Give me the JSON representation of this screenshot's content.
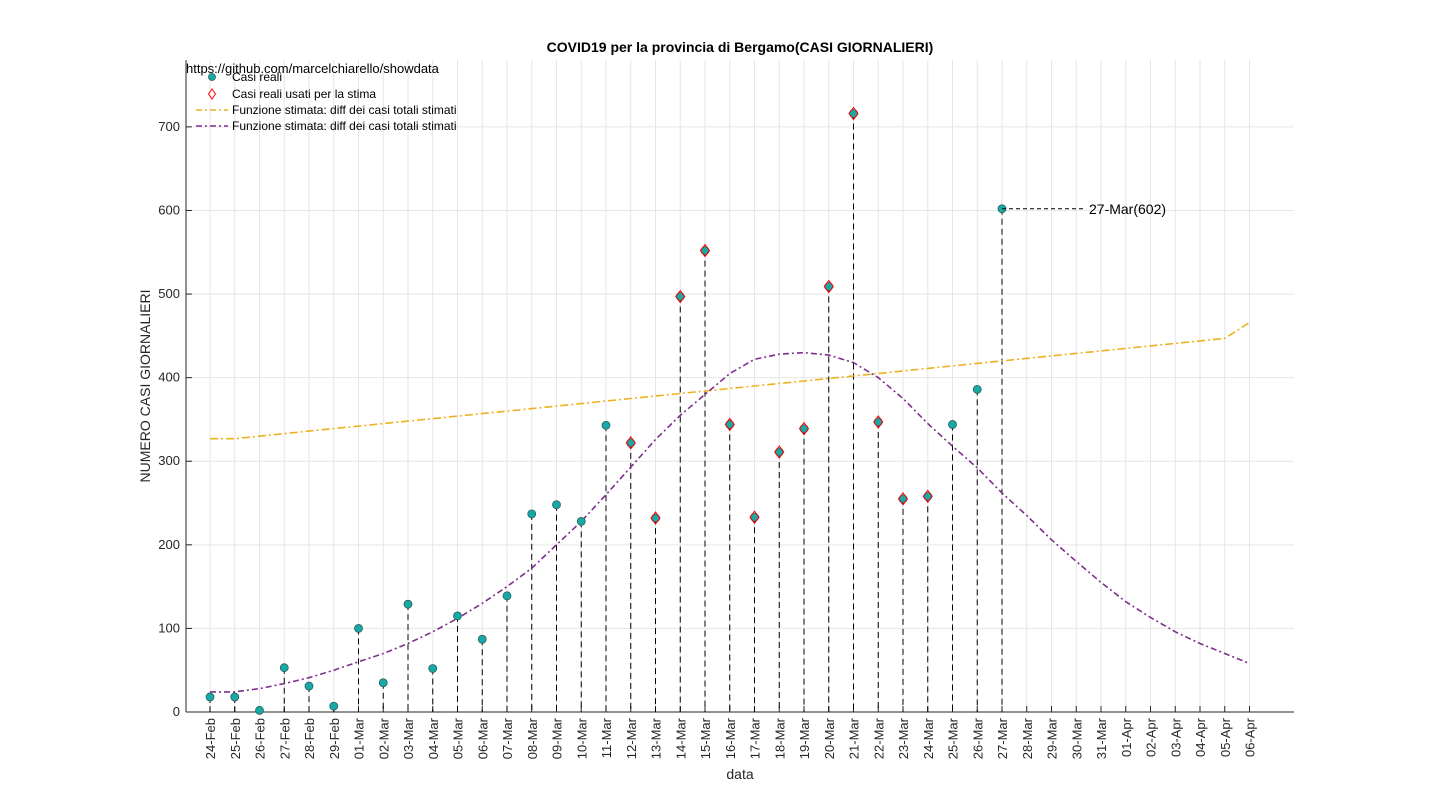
{
  "chart_data": {
    "type": "scatter",
    "title": "COVID19 per la provincia di Bergamo(CASI GIORNALIERI)",
    "xlabel": "data",
    "ylabel": "NUMERO CASI GIORNALIERI",
    "source": "https://github.com/marcelchiarello/showdata",
    "ylim": [
      0,
      780
    ],
    "yticks": [
      0,
      100,
      200,
      300,
      400,
      500,
      600,
      700
    ],
    "grid": true,
    "legend_position": "top-left",
    "categories": [
      "24-Feb",
      "25-Feb",
      "26-Feb",
      "27-Feb",
      "28-Feb",
      "29-Feb",
      "01-Mar",
      "02-Mar",
      "03-Mar",
      "04-Mar",
      "05-Mar",
      "06-Mar",
      "07-Mar",
      "08-Mar",
      "09-Mar",
      "10-Mar",
      "11-Mar",
      "12-Mar",
      "13-Mar",
      "14-Mar",
      "15-Mar",
      "16-Mar",
      "17-Mar",
      "18-Mar",
      "19-Mar",
      "20-Mar",
      "21-Mar",
      "22-Mar",
      "23-Mar",
      "24-Mar",
      "25-Mar",
      "26-Mar",
      "27-Mar",
      "28-Mar",
      "29-Mar",
      "30-Mar",
      "31-Mar",
      "01-Apr",
      "02-Apr",
      "03-Apr",
      "04-Apr",
      "05-Apr",
      "06-Apr"
    ],
    "series": [
      {
        "name": "Casi reali",
        "color": "#17a9a6",
        "values": [
          18,
          18,
          2,
          53,
          31,
          7,
          100,
          35,
          129,
          52,
          115,
          87,
          139,
          237,
          248,
          228,
          343,
          322,
          232,
          497,
          552,
          344,
          233,
          311,
          339,
          509,
          716,
          347,
          255,
          258,
          344,
          386,
          602
        ]
      },
      {
        "name": "Casi reali usati per la stima",
        "color": "#ff0000",
        "values": [
          null,
          null,
          null,
          null,
          null,
          null,
          null,
          null,
          null,
          null,
          null,
          null,
          null,
          null,
          null,
          null,
          null,
          322,
          232,
          497,
          552,
          344,
          233,
          311,
          339,
          509,
          716,
          347,
          255,
          258,
          null,
          null,
          null
        ]
      },
      {
        "name": "Funzione stimata: diff dei casi totali stimati",
        "color": "#edb120",
        "values": [
          327,
          327,
          330,
          333,
          336,
          339,
          342,
          345,
          348,
          351,
          354,
          357,
          360,
          363,
          366,
          369,
          372,
          375,
          378,
          381,
          384,
          387,
          390,
          393,
          396,
          399,
          402,
          405,
          408,
          411,
          414,
          417,
          420,
          423,
          426,
          429,
          432,
          435,
          438,
          441,
          444,
          447,
          466
        ]
      },
      {
        "name": "Funzione stimata: diff dei casi totali stimati",
        "color": "#7e2f8e",
        "values": [
          24,
          24,
          28,
          34,
          41,
          50,
          60,
          70,
          82,
          96,
          112,
          130,
          150,
          172,
          200,
          228,
          260,
          293,
          326,
          355,
          380,
          405,
          422,
          428,
          430,
          427,
          418,
          400,
          375,
          345,
          318,
          292,
          262,
          235,
          206,
          180,
          155,
          132,
          113,
          96,
          82,
          70,
          58
        ]
      }
    ],
    "annotations": [
      {
        "x": "27-Mar",
        "y": 602,
        "text": "27-Mar(602)"
      }
    ]
  }
}
